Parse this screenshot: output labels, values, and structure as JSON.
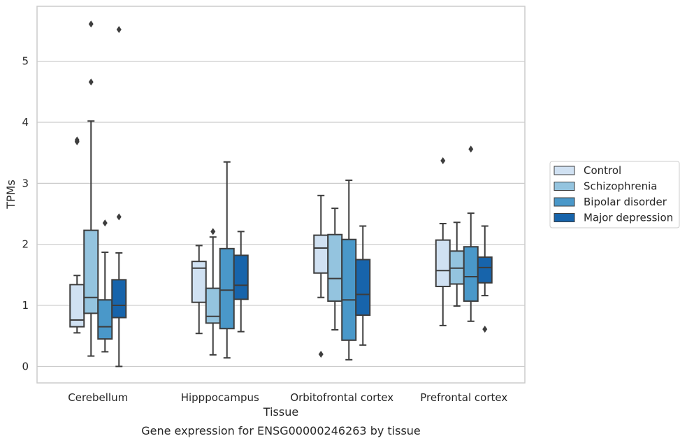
{
  "chart_data": {
    "type": "box",
    "title": "",
    "caption": "Gene expression for ENSG00000246263 by tissue",
    "xlabel": "Tissue",
    "ylabel": "TPMs",
    "ylim": [
      -0.27,
      5.9
    ],
    "yticks": [
      0,
      1,
      2,
      3,
      4,
      5
    ],
    "grid": "horizontal",
    "legend_position": "right",
    "categories": [
      "Cerebellum",
      "Hipppocampus",
      "Orbitofrontal cortex",
      "Prefrontal cortex"
    ],
    "series": [
      {
        "name": "Control",
        "color": "#d0e1f2",
        "boxes": [
          {
            "whislo": 0.55,
            "q1": 0.65,
            "med": 0.76,
            "q3": 1.34,
            "whishi": 1.49,
            "fliers": [
              3.68,
              3.71
            ]
          },
          {
            "whislo": 0.54,
            "q1": 1.05,
            "med": 1.61,
            "q3": 1.72,
            "whishi": 1.98,
            "fliers": []
          },
          {
            "whislo": 1.13,
            "q1": 1.53,
            "med": 1.94,
            "q3": 2.15,
            "whishi": 2.8,
            "fliers": [
              0.2
            ]
          },
          {
            "whislo": 0.67,
            "q1": 1.31,
            "med": 1.57,
            "q3": 2.07,
            "whishi": 2.34,
            "fliers": [
              3.37
            ]
          }
        ]
      },
      {
        "name": "Schizophrenia",
        "color": "#94c4df",
        "boxes": [
          {
            "whislo": 0.17,
            "q1": 0.87,
            "med": 1.13,
            "q3": 2.23,
            "whishi": 4.02,
            "fliers": [
              4.66,
              5.61
            ]
          },
          {
            "whislo": 0.19,
            "q1": 0.71,
            "med": 0.82,
            "q3": 1.28,
            "whishi": 2.12,
            "fliers": [
              2.21
            ]
          },
          {
            "whislo": 0.6,
            "q1": 1.07,
            "med": 1.44,
            "q3": 2.16,
            "whishi": 2.59,
            "fliers": []
          },
          {
            "whislo": 0.99,
            "q1": 1.35,
            "med": 1.61,
            "q3": 1.89,
            "whishi": 2.36,
            "fliers": []
          }
        ]
      },
      {
        "name": "Bipolar disorder",
        "color": "#4a98c9",
        "boxes": [
          {
            "whislo": 0.24,
            "q1": 0.45,
            "med": 0.65,
            "q3": 1.09,
            "whishi": 1.87,
            "fliers": [
              2.35
            ]
          },
          {
            "whislo": 0.14,
            "q1": 0.62,
            "med": 1.25,
            "q3": 1.93,
            "whishi": 3.35,
            "fliers": []
          },
          {
            "whislo": 0.11,
            "q1": 0.43,
            "med": 1.09,
            "q3": 2.08,
            "whishi": 3.05,
            "fliers": []
          },
          {
            "whislo": 0.74,
            "q1": 1.07,
            "med": 1.47,
            "q3": 1.96,
            "whishi": 2.51,
            "fliers": [
              3.56
            ]
          }
        ]
      },
      {
        "name": "Major depression",
        "color": "#1764ab",
        "boxes": [
          {
            "whislo": 0.0,
            "q1": 0.8,
            "med": 1.0,
            "q3": 1.42,
            "whishi": 1.86,
            "fliers": [
              2.45,
              5.52
            ]
          },
          {
            "whislo": 0.57,
            "q1": 1.1,
            "med": 1.33,
            "q3": 1.82,
            "whishi": 2.21,
            "fliers": []
          },
          {
            "whislo": 0.35,
            "q1": 0.84,
            "med": 1.18,
            "q3": 1.75,
            "whishi": 2.3,
            "fliers": []
          },
          {
            "whislo": 1.16,
            "q1": 1.37,
            "med": 1.62,
            "q3": 1.79,
            "whishi": 2.3,
            "fliers": [
              0.61
            ]
          }
        ]
      }
    ]
  }
}
